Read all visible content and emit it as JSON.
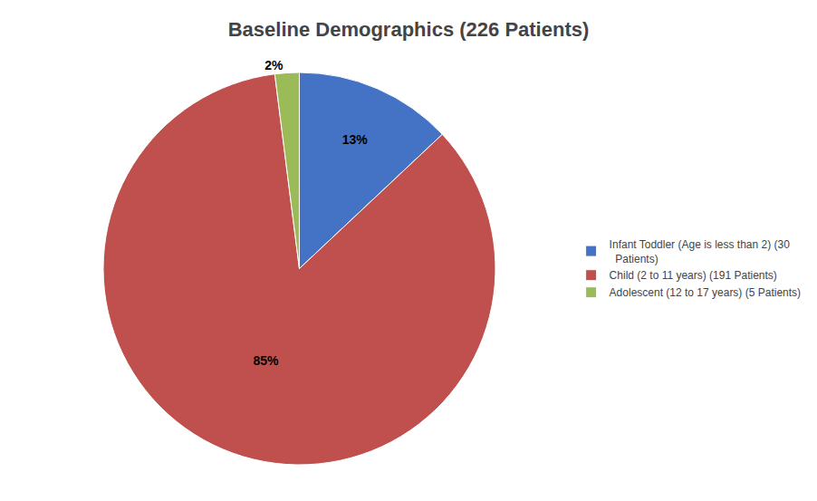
{
  "chart_data": {
    "type": "pie",
    "title": "Baseline Demographics (226 Patients)",
    "categories": [
      "Infant Toddler (Age is less than 2) (30\n  Patients)",
      "Child (2 to 11 years) (191 Patients)",
      "Adolescent (12 to 17 years) (5 Patients)"
    ],
    "values": [
      13,
      85,
      2
    ],
    "value_labels": [
      "13%",
      "85%",
      "2%"
    ],
    "colors": [
      "#4472C4",
      "#C0504D",
      "#9BBB59"
    ],
    "data_labels": true,
    "legend": "right"
  }
}
